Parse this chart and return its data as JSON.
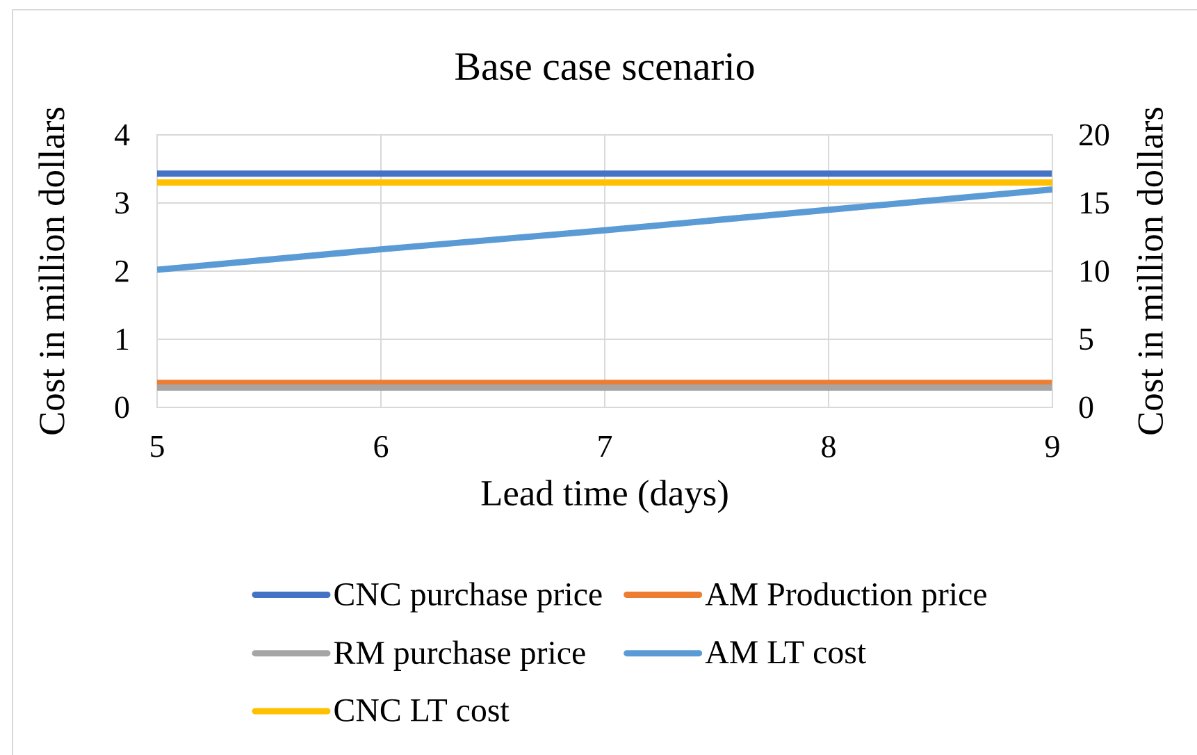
{
  "chart_data": {
    "type": "line",
    "title": "Base case scenario",
    "xlabel": "Lead time (days)",
    "ylabel": "Cost in million dollars",
    "y2label": "Cost in million dollars",
    "x": [
      5,
      6,
      7,
      8,
      9
    ],
    "series": [
      {
        "name": "CNC purchase price",
        "color": "#4472c4",
        "values": [
          3.43,
          3.43,
          3.43,
          3.43,
          3.43
        ]
      },
      {
        "name": "AM Production price",
        "color": "#ed7d31",
        "values": [
          0.36,
          0.36,
          0.36,
          0.36,
          0.36
        ]
      },
      {
        "name": "RM purchase price",
        "color": "#a5a5a5",
        "values": [
          0.29,
          0.29,
          0.29,
          0.29,
          0.29
        ]
      },
      {
        "name": "AM LT cost",
        "color": "#5b9bd5",
        "axis": "y2",
        "values": [
          10.1,
          11.6,
          13.0,
          14.5,
          16.0
        ]
      },
      {
        "name": "CNC LT cost",
        "color": "#ffc000",
        "axis": "y2",
        "values": [
          16.5,
          16.5,
          16.5,
          16.5,
          16.5
        ]
      }
    ],
    "xlim": [
      5,
      9
    ],
    "ylim": [
      0,
      4
    ],
    "y2lim": [
      0,
      20
    ],
    "xticks": [
      5,
      6,
      7,
      8,
      9
    ],
    "yticks": [
      0,
      1,
      2,
      3,
      4
    ],
    "y2ticks": [
      0,
      5,
      10,
      15,
      20
    ],
    "grid": true,
    "legend": "bottom",
    "line_style": "solid"
  }
}
